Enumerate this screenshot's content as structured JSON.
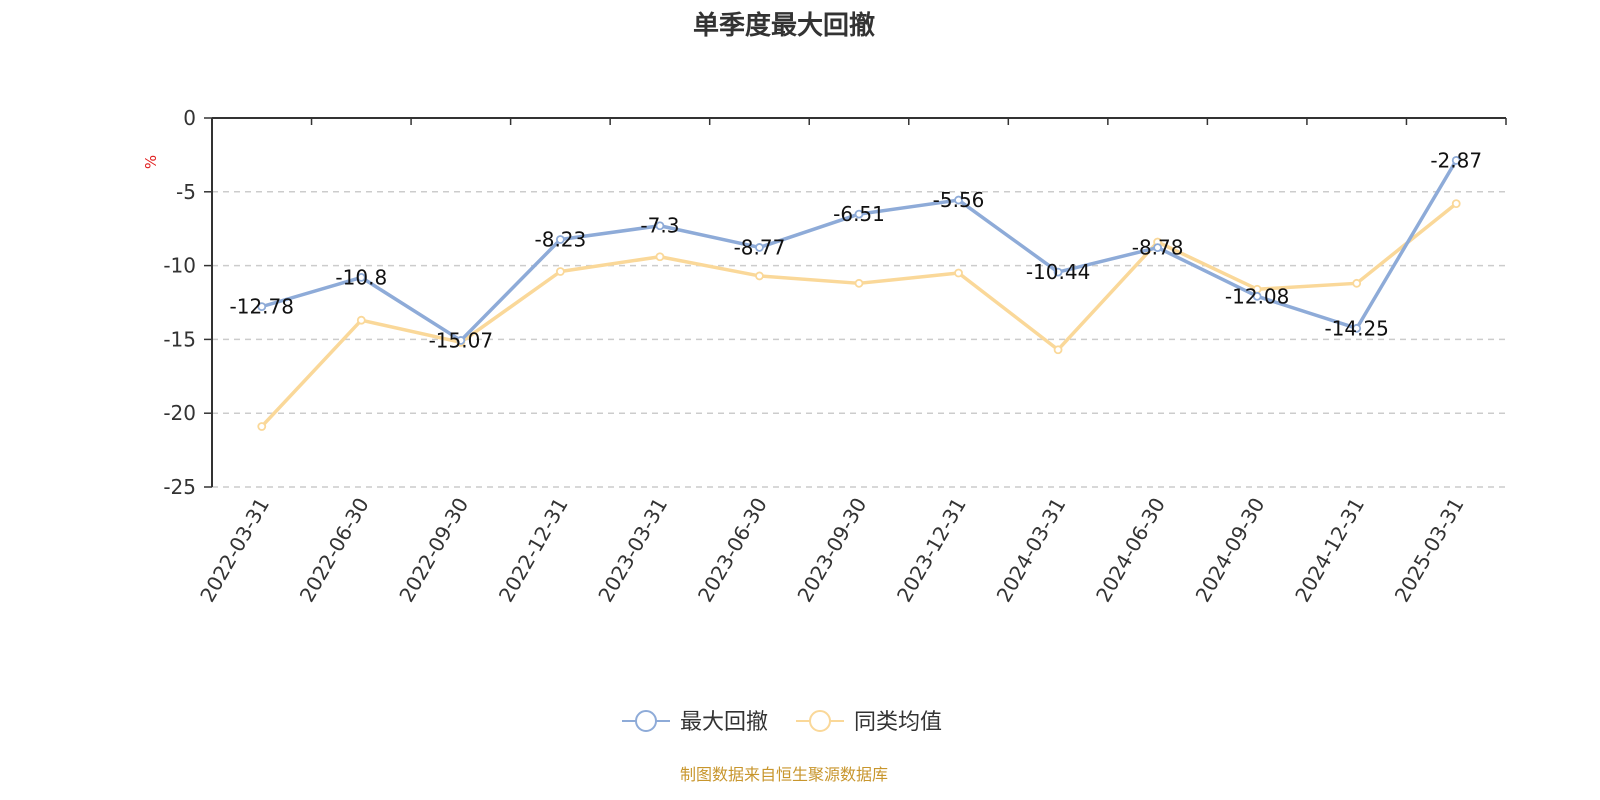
{
  "chart_data": {
    "type": "line",
    "title": "单季度最大回撤",
    "ylabel": "%",
    "ylim": [
      -25,
      0
    ],
    "yticks": [
      0,
      -5,
      -10,
      -15,
      -20,
      -25
    ],
    "grid": true,
    "legend_position": "bottom-center",
    "categories": [
      "2022-03-31",
      "2022-06-30",
      "2022-09-30",
      "2022-12-31",
      "2023-03-31",
      "2023-06-30",
      "2023-09-30",
      "2023-12-31",
      "2024-03-31",
      "2024-06-30",
      "2024-09-30",
      "2024-12-31",
      "2025-03-31"
    ],
    "series": [
      {
        "name": "最大回撤",
        "color": "#8eabd8",
        "values": [
          -12.78,
          -10.8,
          -15.07,
          -8.23,
          -7.3,
          -8.77,
          -6.51,
          -5.56,
          -10.44,
          -8.78,
          -12.08,
          -14.25,
          -2.87
        ],
        "labels": [
          "-12.78",
          "-10.8",
          "-15.07",
          "-8.23",
          "-7.3",
          "-8.77",
          "-6.51",
          "-5.56",
          "-10.44",
          "-8.78",
          "-12.08",
          "-14.25",
          "-2.87"
        ]
      },
      {
        "name": "同类均值",
        "color": "#fad899",
        "values": [
          -20.9,
          -13.7,
          -15.2,
          -10.4,
          -9.4,
          -10.7,
          -11.2,
          -10.5,
          -15.7,
          -8.4,
          -11.6,
          -11.2,
          -5.8
        ]
      }
    ]
  },
  "footer": {
    "source": "制图数据来自恒生聚源数据库"
  }
}
